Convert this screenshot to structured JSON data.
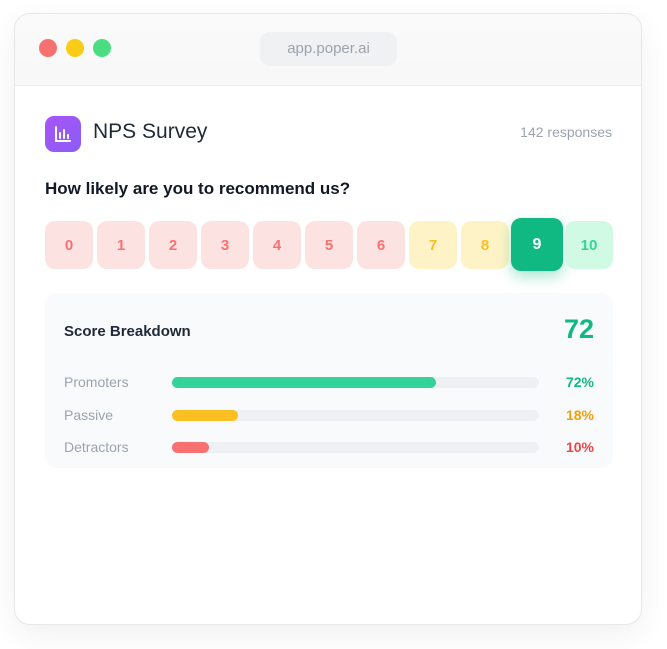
{
  "browser": {
    "url": "app.poper.ai"
  },
  "header": {
    "title": "NPS Survey",
    "responses": "142 responses"
  },
  "question": "How likely are you to recommend us?",
  "scale": {
    "options": [
      0,
      1,
      2,
      3,
      4,
      5,
      6,
      7,
      8,
      9,
      10
    ],
    "selected": 9,
    "option_colors": [
      {
        "bg": "#fde2e2",
        "fg": "#f87171"
      },
      {
        "bg": "#fde2e2",
        "fg": "#f87171"
      },
      {
        "bg": "#fde2e2",
        "fg": "#f87171"
      },
      {
        "bg": "#fde2e2",
        "fg": "#f87171"
      },
      {
        "bg": "#fde2e2",
        "fg": "#f87171"
      },
      {
        "bg": "#fde2e2",
        "fg": "#f87171"
      },
      {
        "bg": "#fde2e2",
        "fg": "#f87171"
      },
      {
        "bg": "#fef3c7",
        "fg": "#fbbf24"
      },
      {
        "bg": "#fef3c7",
        "fg": "#fbbf24"
      },
      {
        "bg": "#10b981",
        "fg": "#ffffff"
      },
      {
        "bg": "#d1fae5",
        "fg": "#34d399"
      }
    ]
  },
  "breakdown": {
    "title": "Score Breakdown",
    "score": 72,
    "rows": [
      {
        "name": "Promoters",
        "value": 72,
        "value_label": "72%",
        "color": "#34d399",
        "label_color": "#10b981"
      },
      {
        "name": "Passive",
        "value": 18,
        "value_label": "18%",
        "color": "#fbbf24",
        "label_color": "#f59e0b"
      },
      {
        "name": "Detractors",
        "value": 10,
        "value_label": "10%",
        "color": "#f87171",
        "label_color": "#ef4444"
      }
    ]
  }
}
